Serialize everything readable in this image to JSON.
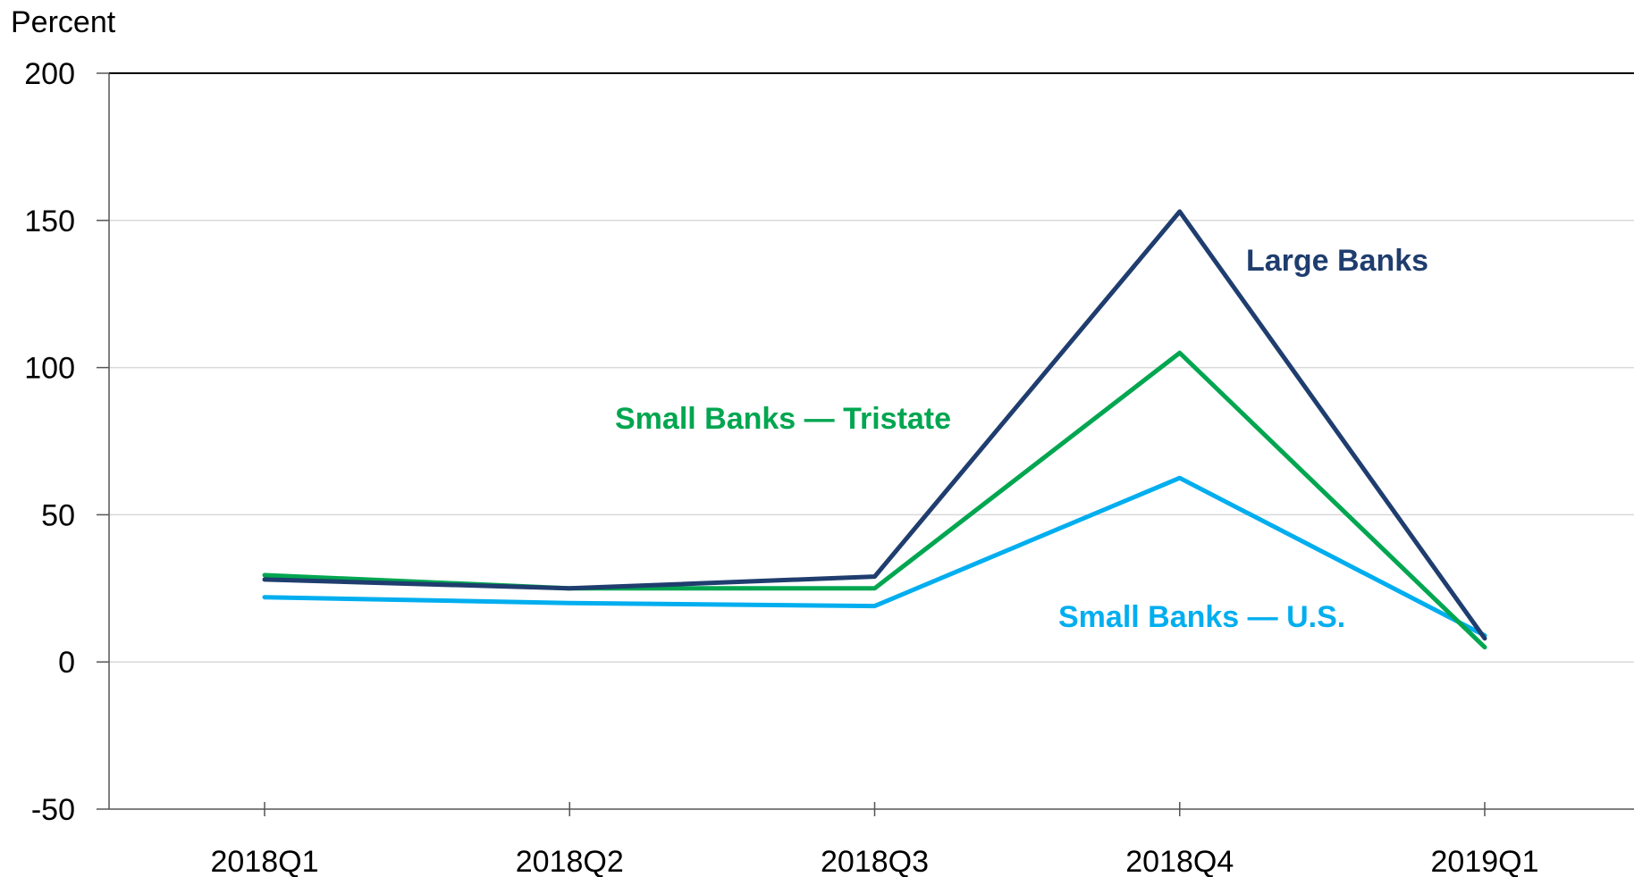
{
  "chart_data": {
    "type": "line",
    "categories": [
      "2018Q1",
      "2018Q2",
      "2018Q3",
      "2018Q4",
      "2019Q1"
    ],
    "ylabel": "Percent",
    "ylim": [
      -50,
      200
    ],
    "yticks": [
      -50,
      0,
      50,
      100,
      150,
      200
    ],
    "grid": true,
    "series": [
      {
        "name": "Large Banks",
        "color": "#1f3d6e",
        "values": [
          28,
          25,
          29,
          153,
          8
        ]
      },
      {
        "name": "Small Banks — Tristate",
        "color": "#00a650",
        "values": [
          29.5,
          25,
          25,
          105,
          5
        ]
      },
      {
        "name": "Small Banks — U.S.",
        "color": "#00aeef",
        "values": [
          22,
          20,
          19,
          62.5,
          9
        ]
      }
    ]
  }
}
